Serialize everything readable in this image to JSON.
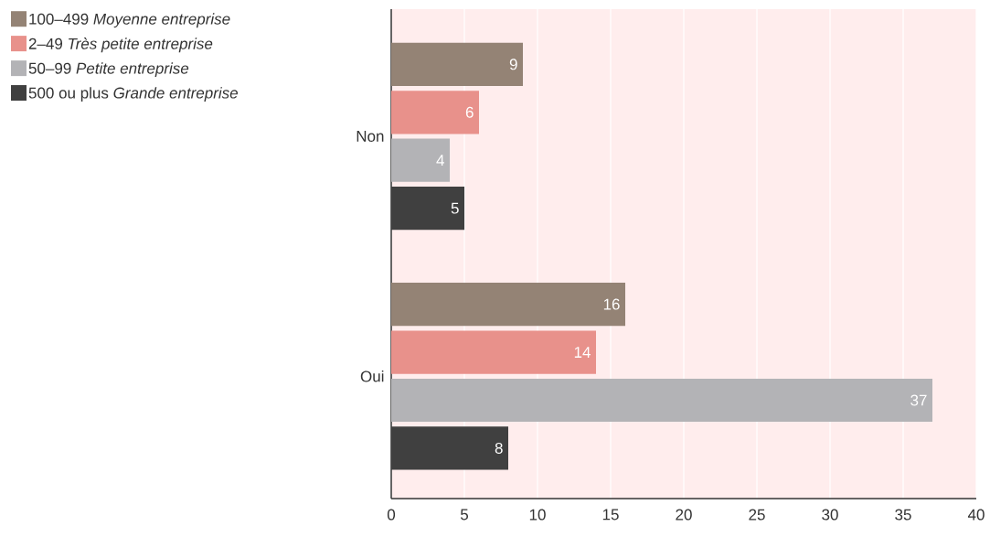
{
  "chart_data": {
    "type": "bar",
    "orientation": "horizontal",
    "categories": [
      "Non",
      "Oui"
    ],
    "series": [
      {
        "name": "100–499 *Moyenne entreprise*",
        "color": "#948375",
        "values": [
          9,
          16
        ]
      },
      {
        "name": "2–49 *Très petite entreprise*",
        "color": "#e8918b",
        "values": [
          6,
          14
        ]
      },
      {
        "name": "50–99 *Petite entreprise*",
        "color": "#b3b3b6",
        "values": [
          4,
          37
        ]
      },
      {
        "name": "500 ou plus *Grande entreprise*",
        "color": "#404040",
        "values": [
          5,
          8
        ]
      }
    ],
    "xlim": [
      0,
      40
    ],
    "xticks": [
      0,
      5,
      10,
      15,
      20,
      25,
      30,
      35,
      40
    ],
    "grid": "x",
    "legend": "top left",
    "data_labels": true
  }
}
